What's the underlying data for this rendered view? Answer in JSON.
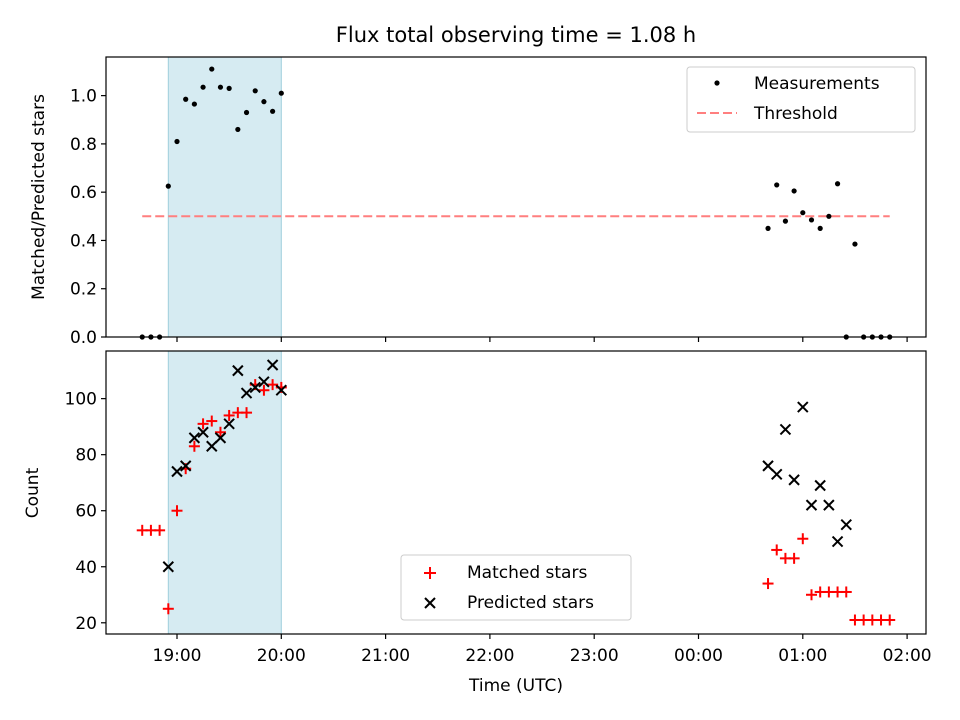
{
  "chart_data": [
    {
      "type": "scatter",
      "title": "Flux total observing time = 1.08 h",
      "xlabel": "",
      "ylabel": "Matched/Predicted stars",
      "ylim": [
        0,
        1.16
      ],
      "yticks": [
        "0.0",
        "0.2",
        "0.4",
        "0.6",
        "0.8",
        "1.0"
      ],
      "highlight_span": {
        "start": "18:55",
        "end": "20:00",
        "color": "#add8e6"
      },
      "legend": {
        "placement": "upper-right",
        "entries": [
          "Measurements",
          "Threshold"
        ]
      },
      "series": [
        {
          "name": "Measurements",
          "marker": "dot",
          "color": "#000000",
          "points": [
            [
              "18:40",
              0
            ],
            [
              "18:45",
              0
            ],
            [
              "18:50",
              0
            ],
            [
              "18:55",
              0.625
            ],
            [
              "19:00",
              0.81
            ],
            [
              "19:05",
              0.985
            ],
            [
              "19:10",
              0.965
            ],
            [
              "19:15",
              1.035
            ],
            [
              "19:20",
              1.11
            ],
            [
              "19:25",
              1.035
            ],
            [
              "19:30",
              1.03
            ],
            [
              "19:35",
              0.86
            ],
            [
              "19:40",
              0.93
            ],
            [
              "19:45",
              1.02
            ],
            [
              "19:50",
              0.975
            ],
            [
              "19:55",
              0.935
            ],
            [
              "20:00",
              1.01
            ],
            [
              "00:40",
              0.45
            ],
            [
              "00:45",
              0.63
            ],
            [
              "00:50",
              0.48
            ],
            [
              "00:55",
              0.605
            ],
            [
              "01:00",
              0.515
            ],
            [
              "01:05",
              0.485
            ],
            [
              "01:10",
              0.45
            ],
            [
              "01:15",
              0.5
            ],
            [
              "01:20",
              0.635
            ],
            [
              "01:25",
              0
            ],
            [
              "01:30",
              0.385
            ],
            [
              "01:35",
              0
            ],
            [
              "01:40",
              0
            ],
            [
              "01:45",
              0
            ],
            [
              "01:50",
              0
            ]
          ]
        },
        {
          "name": "Threshold",
          "marker": "dashed-line",
          "color": "#ff7f7f",
          "points": [
            [
              "18:40",
              0.5
            ],
            [
              "01:50",
              0.5
            ]
          ]
        }
      ]
    },
    {
      "type": "scatter",
      "title": "",
      "xlabel": "Time (UTC)",
      "ylabel": "Count",
      "ylim": [
        16,
        117
      ],
      "yticks": [
        "20",
        "40",
        "60",
        "80",
        "100"
      ],
      "xticks": [
        "19:00",
        "20:00",
        "21:00",
        "22:00",
        "23:00",
        "00:00",
        "01:00",
        "02:00"
      ],
      "highlight_span": {
        "start": "18:55",
        "end": "20:00",
        "color": "#add8e6"
      },
      "legend": {
        "placement": "lower-center",
        "entries": [
          "Matched stars",
          "Predicted stars"
        ]
      },
      "series": [
        {
          "name": "Matched stars",
          "marker": "plus",
          "color": "#ff0000",
          "points": [
            [
              "18:40",
              53
            ],
            [
              "18:45",
              53
            ],
            [
              "18:50",
              53
            ],
            [
              "18:55",
              25
            ],
            [
              "19:00",
              60
            ],
            [
              "19:05",
              75
            ],
            [
              "19:10",
              83
            ],
            [
              "19:15",
              91
            ],
            [
              "19:20",
              92
            ],
            [
              "19:25",
              88
            ],
            [
              "19:30",
              94
            ],
            [
              "19:35",
              95
            ],
            [
              "19:40",
              95
            ],
            [
              "19:45",
              105
            ],
            [
              "19:50",
              103
            ],
            [
              "19:55",
              105
            ],
            [
              "20:00",
              104
            ],
            [
              "00:40",
              34
            ],
            [
              "00:45",
              46
            ],
            [
              "00:50",
              43
            ],
            [
              "00:55",
              43
            ],
            [
              "01:00",
              50
            ],
            [
              "01:05",
              30
            ],
            [
              "01:10",
              31
            ],
            [
              "01:15",
              31
            ],
            [
              "01:20",
              31
            ],
            [
              "01:25",
              31
            ],
            [
              "01:30",
              21
            ],
            [
              "01:35",
              21
            ],
            [
              "01:40",
              21
            ],
            [
              "01:45",
              21
            ],
            [
              "01:50",
              21
            ]
          ]
        },
        {
          "name": "Predicted stars",
          "marker": "x",
          "color": "#000000",
          "points": [
            [
              "18:55",
              40
            ],
            [
              "19:00",
              74
            ],
            [
              "19:05",
              76
            ],
            [
              "19:10",
              86
            ],
            [
              "19:15",
              88
            ],
            [
              "19:20",
              83
            ],
            [
              "19:25",
              86
            ],
            [
              "19:30",
              91
            ],
            [
              "19:35",
              110
            ],
            [
              "19:40",
              102
            ],
            [
              "19:45",
              104
            ],
            [
              "19:50",
              106
            ],
            [
              "19:55",
              112
            ],
            [
              "20:00",
              103
            ],
            [
              "00:40",
              76
            ],
            [
              "00:45",
              73
            ],
            [
              "00:50",
              89
            ],
            [
              "00:55",
              71
            ],
            [
              "01:00",
              97
            ],
            [
              "01:05",
              62
            ],
            [
              "01:10",
              69
            ],
            [
              "01:15",
              62
            ],
            [
              "01:20",
              49
            ],
            [
              "01:25",
              55
            ]
          ]
        }
      ]
    }
  ]
}
